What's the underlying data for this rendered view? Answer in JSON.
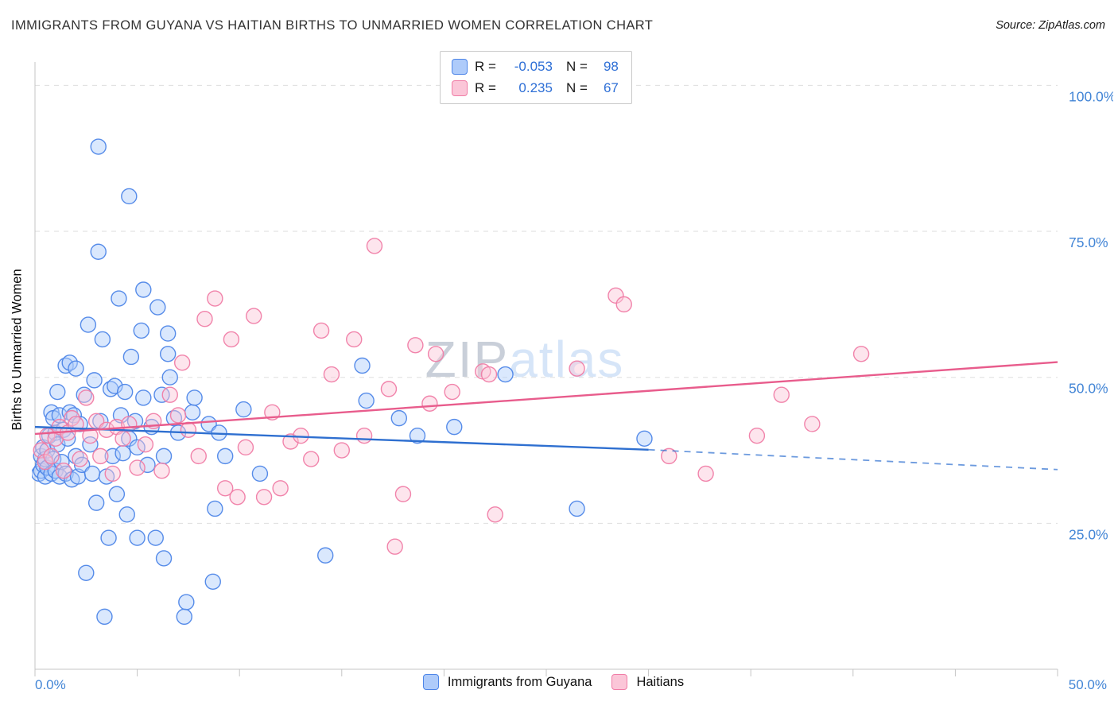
{
  "header": {
    "title": "IMMIGRANTS FROM GUYANA VS HAITIAN BIRTHS TO UNMARRIED WOMEN CORRELATION CHART",
    "source": "Source: ZipAtlas.com"
  },
  "watermark": {
    "part1": "ZIP",
    "part2": "atlas"
  },
  "correlation_box": {
    "rows": [
      {
        "r_label": "R =",
        "r_value": "-0.053",
        "n_label": "N =",
        "n_value": "98"
      },
      {
        "r_label": "R =",
        "r_value": "0.235",
        "n_label": "N =",
        "n_value": "67"
      }
    ]
  },
  "colors": {
    "accent_blue": "#2e6fd6",
    "axis_label_blue": "#4285d6",
    "guyana_fill": "#aecbfa",
    "guyana_stroke": "#4e86e8",
    "guyana_trend": "#2e6fd0",
    "haitian_fill": "#fbc6d8",
    "haitian_stroke": "#f07da6",
    "haitian_trend": "#e85c8c",
    "gridline": "#dedede",
    "watermark_gray": "#c9cfd9",
    "watermark_blue": "#d6e5f8"
  },
  "chart_data": {
    "type": "scatter",
    "title": "IMMIGRANTS FROM GUYANA VS HAITIAN BIRTHS TO UNMARRIED WOMEN CORRELATION CHART",
    "xlabel": "",
    "ylabel": "Births to Unmarried Women",
    "x_unit": "%",
    "y_unit": "%",
    "xlim": [
      0,
      50
    ],
    "ylim": [
      0,
      104
    ],
    "grid": "horizontal-dashed",
    "legend_position": "bottom",
    "x_tick_step": 5,
    "grid_y_values": [
      25,
      50,
      75,
      100
    ],
    "y_ticks": [
      {
        "value": 100,
        "label": "100.0%"
      },
      {
        "value": 75,
        "label": "75.0%"
      },
      {
        "value": 50,
        "label": "50.0%"
      },
      {
        "value": 25,
        "label": "25.0%"
      }
    ],
    "x_ticks": [
      {
        "value": 0,
        "label": "0.0%"
      },
      {
        "value": 50,
        "label": "50.0%"
      }
    ],
    "series": [
      {
        "name": "Immigrants from Guyana",
        "R": -0.053,
        "N": 98,
        "marker_fill": "#aecbfa",
        "marker_stroke": "#4e86e8",
        "trend": {
          "color": "#2e6fd0",
          "solid": [
            [
              0,
              41.5
            ],
            [
              30,
              37.6
            ]
          ],
          "dashed": [
            [
              30,
              37.6
            ],
            [
              50,
              34.2
            ]
          ]
        },
        "points": [
          [
            0.2,
            33.5
          ],
          [
            0.3,
            34.0
          ],
          [
            0.3,
            36.5
          ],
          [
            0.4,
            35.0
          ],
          [
            0.4,
            38.0
          ],
          [
            0.5,
            33.0
          ],
          [
            0.5,
            36.0
          ],
          [
            0.6,
            34.5
          ],
          [
            0.6,
            37.5
          ],
          [
            0.7,
            40.0
          ],
          [
            0.8,
            33.5
          ],
          [
            0.8,
            44.0
          ],
          [
            0.9,
            36.0
          ],
          [
            0.9,
            43.0
          ],
          [
            1.0,
            34.0
          ],
          [
            1.0,
            40.5
          ],
          [
            1.1,
            38.5
          ],
          [
            1.1,
            47.5
          ],
          [
            1.2,
            33.0
          ],
          [
            1.2,
            43.5
          ],
          [
            1.3,
            35.5
          ],
          [
            1.4,
            41.0
          ],
          [
            1.5,
            33.5
          ],
          [
            1.5,
            52.0
          ],
          [
            1.6,
            39.5
          ],
          [
            1.7,
            44.0
          ],
          [
            1.7,
            52.5
          ],
          [
            1.8,
            32.5
          ],
          [
            1.9,
            43.5
          ],
          [
            2.0,
            36.5
          ],
          [
            2.0,
            51.5
          ],
          [
            2.1,
            33.0
          ],
          [
            2.2,
            42.0
          ],
          [
            2.3,
            35.0
          ],
          [
            2.4,
            47.0
          ],
          [
            2.5,
            16.5
          ],
          [
            2.6,
            59.0
          ],
          [
            2.7,
            38.5
          ],
          [
            2.8,
            33.5
          ],
          [
            2.9,
            49.5
          ],
          [
            3.0,
            28.5
          ],
          [
            3.1,
            89.5
          ],
          [
            3.1,
            71.5
          ],
          [
            3.2,
            42.5
          ],
          [
            3.3,
            56.5
          ],
          [
            3.4,
            9.0
          ],
          [
            3.5,
            33.0
          ],
          [
            3.6,
            22.5
          ],
          [
            3.7,
            48.0
          ],
          [
            3.8,
            36.5
          ],
          [
            3.9,
            48.5
          ],
          [
            4.0,
            30.0
          ],
          [
            4.1,
            63.5
          ],
          [
            4.2,
            43.5
          ],
          [
            4.3,
            37.0
          ],
          [
            4.4,
            47.5
          ],
          [
            4.5,
            26.5
          ],
          [
            4.6,
            81.0
          ],
          [
            4.6,
            39.5
          ],
          [
            4.7,
            53.5
          ],
          [
            4.9,
            42.5
          ],
          [
            5.0,
            22.5
          ],
          [
            5.0,
            38.0
          ],
          [
            5.2,
            58.0
          ],
          [
            5.3,
            65.0
          ],
          [
            5.3,
            46.5
          ],
          [
            5.5,
            35.0
          ],
          [
            5.7,
            41.5
          ],
          [
            5.9,
            22.5
          ],
          [
            6.0,
            62.0
          ],
          [
            6.2,
            47.0
          ],
          [
            6.3,
            36.5
          ],
          [
            6.3,
            19.0
          ],
          [
            6.5,
            57.5
          ],
          [
            6.5,
            54.0
          ],
          [
            6.6,
            50.0
          ],
          [
            6.8,
            43.0
          ],
          [
            7.0,
            40.5
          ],
          [
            7.3,
            9.0
          ],
          [
            7.4,
            11.5
          ],
          [
            7.7,
            44.0
          ],
          [
            7.8,
            46.5
          ],
          [
            8.5,
            42.0
          ],
          [
            8.7,
            15.0
          ],
          [
            8.8,
            27.5
          ],
          [
            9.0,
            40.5
          ],
          [
            9.3,
            36.5
          ],
          [
            10.2,
            44.5
          ],
          [
            11.0,
            33.5
          ],
          [
            14.2,
            19.5
          ],
          [
            16.0,
            52.0
          ],
          [
            16.2,
            46.0
          ],
          [
            17.8,
            43.0
          ],
          [
            18.7,
            40.0
          ],
          [
            20.5,
            41.5
          ],
          [
            23.0,
            50.5
          ],
          [
            26.5,
            27.5
          ],
          [
            29.8,
            39.5
          ]
        ]
      },
      {
        "name": "Haitians",
        "R": 0.235,
        "N": 67,
        "marker_fill": "#fbc6d8",
        "marker_stroke": "#f07da6",
        "trend": {
          "color": "#e85c8c",
          "solid": [
            [
              0,
              40.3
            ],
            [
              50,
              52.6
            ]
          ]
        },
        "points": [
          [
            0.3,
            37.5
          ],
          [
            0.5,
            35.5
          ],
          [
            0.6,
            40.0
          ],
          [
            0.8,
            36.5
          ],
          [
            1.0,
            39.5
          ],
          [
            1.2,
            41.5
          ],
          [
            1.4,
            34.0
          ],
          [
            1.6,
            40.5
          ],
          [
            1.8,
            43.0
          ],
          [
            2.0,
            42.0
          ],
          [
            2.2,
            36.0
          ],
          [
            2.5,
            46.5
          ],
          [
            2.7,
            40.0
          ],
          [
            3.0,
            42.5
          ],
          [
            3.2,
            36.5
          ],
          [
            3.5,
            41.0
          ],
          [
            3.8,
            33.5
          ],
          [
            4.0,
            41.5
          ],
          [
            4.3,
            39.5
          ],
          [
            4.6,
            42.0
          ],
          [
            5.0,
            34.5
          ],
          [
            5.4,
            38.5
          ],
          [
            5.8,
            42.5
          ],
          [
            6.2,
            34.0
          ],
          [
            6.6,
            47.0
          ],
          [
            7.0,
            43.5
          ],
          [
            7.2,
            52.5
          ],
          [
            7.5,
            41.0
          ],
          [
            8.0,
            36.5
          ],
          [
            8.3,
            60.0
          ],
          [
            8.8,
            63.5
          ],
          [
            9.3,
            31.0
          ],
          [
            9.6,
            56.5
          ],
          [
            9.9,
            29.5
          ],
          [
            10.3,
            38.0
          ],
          [
            10.7,
            60.5
          ],
          [
            11.2,
            29.5
          ],
          [
            11.6,
            44.0
          ],
          [
            12.0,
            31.0
          ],
          [
            12.5,
            39.0
          ],
          [
            13.0,
            40.0
          ],
          [
            13.5,
            36.0
          ],
          [
            14.0,
            58.0
          ],
          [
            14.5,
            50.5
          ],
          [
            15.0,
            37.5
          ],
          [
            15.6,
            56.5
          ],
          [
            16.1,
            40.0
          ],
          [
            16.6,
            72.5
          ],
          [
            17.3,
            48.0
          ],
          [
            17.6,
            21.0
          ],
          [
            18.0,
            30.0
          ],
          [
            18.6,
            55.5
          ],
          [
            19.3,
            45.5
          ],
          [
            19.6,
            54.0
          ],
          [
            20.4,
            47.5
          ],
          [
            21.9,
            51.0
          ],
          [
            22.2,
            50.5
          ],
          [
            22.5,
            26.5
          ],
          [
            26.5,
            51.5
          ],
          [
            28.4,
            64.0
          ],
          [
            28.8,
            62.5
          ],
          [
            31.0,
            36.5
          ],
          [
            32.8,
            33.5
          ],
          [
            35.3,
            40.0
          ],
          [
            36.5,
            47.0
          ],
          [
            38.0,
            42.0
          ],
          [
            40.4,
            54.0
          ]
        ]
      }
    ]
  }
}
